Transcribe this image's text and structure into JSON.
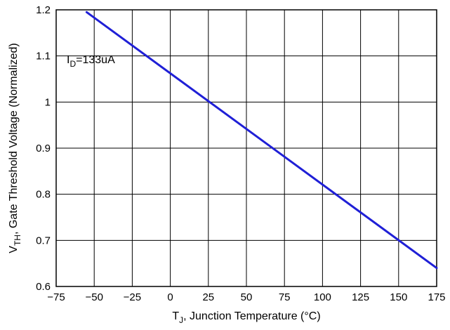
{
  "chart_data": {
    "type": "line",
    "title": "",
    "xlabel": {
      "main": "T",
      "sub": "J",
      "rest": ", Junction Temperature (°C)"
    },
    "ylabel": {
      "main": "V",
      "sub": "TH",
      "rest": ", Gate Threshold Voltage (Normalized)"
    },
    "xlim": [
      -75,
      175
    ],
    "ylim": [
      0.6,
      1.2
    ],
    "xticks": [
      -75,
      -50,
      -25,
      0,
      25,
      50,
      75,
      100,
      125,
      150,
      175
    ],
    "yticks": [
      0.6,
      0.7,
      0.8,
      0.9,
      1.0,
      1.1,
      1.2
    ],
    "ytick_labels": [
      "0.6",
      "0.7",
      "0.8",
      "0.9",
      "1",
      "1.1",
      "1.2"
    ],
    "grid": true,
    "series": [
      {
        "color": "#1f1fd6",
        "x": [
          -55,
          175
        ],
        "y": [
          1.195,
          0.64
        ]
      }
    ],
    "annotation": {
      "main": "I",
      "sub": "D",
      "rest": "=133uA",
      "x": -75,
      "y": 1.09
    }
  }
}
